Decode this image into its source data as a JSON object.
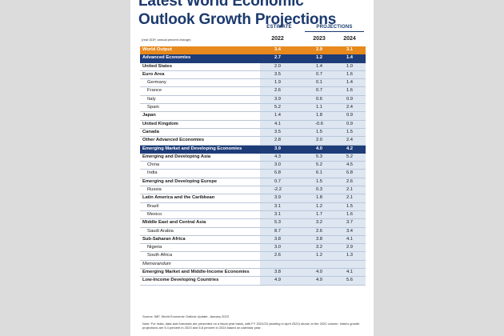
{
  "title": [
    "Latest World Economic",
    "Outlook Growth Projections"
  ],
  "header": {
    "estimate": "ESTIMATE",
    "projections": "PROJECTIONS",
    "years": [
      "2022",
      "2023",
      "2024"
    ],
    "note": "(real GDP, annual percent change)"
  },
  "rows": [
    {
      "label": "World Output",
      "v": [
        "3.4",
        "2.9",
        "3.1"
      ],
      "style": "orange"
    },
    {
      "label": "Advanced Economies",
      "v": [
        "2.7",
        "1.2",
        "1.4"
      ],
      "style": "navy"
    },
    {
      "label": "United States",
      "v": [
        "2.0",
        "1.4",
        "1.0"
      ],
      "style": "hd"
    },
    {
      "label": "Euro Area",
      "v": [
        "3.5",
        "0.7",
        "1.6"
      ],
      "style": "hd"
    },
    {
      "label": "Germany",
      "v": [
        "1.9",
        "0.1",
        "1.4"
      ],
      "style": "sub"
    },
    {
      "label": "France",
      "v": [
        "2.6",
        "0.7",
        "1.6"
      ],
      "style": "sub"
    },
    {
      "label": "Italy",
      "v": [
        "3.9",
        "0.6",
        "0.9"
      ],
      "style": "sub"
    },
    {
      "label": "Spain",
      "v": [
        "5.2",
        "1.1",
        "2.4"
      ],
      "style": "sub"
    },
    {
      "label": "Japan",
      "v": [
        "1.4",
        "1.8",
        "0.9"
      ],
      "style": "hd"
    },
    {
      "label": "United Kingdom",
      "v": [
        "4.1",
        "-0.6",
        "0.9"
      ],
      "style": "hd"
    },
    {
      "label": "Canada",
      "v": [
        "3.5",
        "1.5",
        "1.5"
      ],
      "style": "hd"
    },
    {
      "label": "Other Advanced Economies",
      "v": [
        "2.8",
        "2.0",
        "2.4"
      ],
      "style": "hd"
    },
    {
      "label": "Emerging Market and Developing Economies",
      "v": [
        "3.9",
        "4.0",
        "4.2"
      ],
      "style": "navy"
    },
    {
      "label": "Emerging and Developing Asia",
      "v": [
        "4.3",
        "5.3",
        "5.2"
      ],
      "style": "hd"
    },
    {
      "label": "China",
      "v": [
        "3.0",
        "5.2",
        "4.5"
      ],
      "style": "sub"
    },
    {
      "label": "India",
      "v": [
        "6.8",
        "6.1",
        "6.8"
      ],
      "style": "sub"
    },
    {
      "label": "Emerging and Developing Europe",
      "v": [
        "0.7",
        "1.5",
        "2.6"
      ],
      "style": "hd"
    },
    {
      "label": "Russia",
      "v": [
        "-2.2",
        "0.3",
        "2.1"
      ],
      "style": "sub"
    },
    {
      "label": "Latin America and the Caribbean",
      "v": [
        "3.9",
        "1.8",
        "2.1"
      ],
      "style": "hd"
    },
    {
      "label": "Brazil",
      "v": [
        "3.1",
        "1.2",
        "1.5"
      ],
      "style": "sub"
    },
    {
      "label": "Mexico",
      "v": [
        "3.1",
        "1.7",
        "1.6"
      ],
      "style": "sub"
    },
    {
      "label": "Middle East and Central Asia",
      "v": [
        "5.3",
        "3.2",
        "3.7"
      ],
      "style": "hd"
    },
    {
      "label": "Saudi Arabia",
      "v": [
        "8.7",
        "2.6",
        "3.4"
      ],
      "style": "sub"
    },
    {
      "label": "Sub-Saharan Africa",
      "v": [
        "3.8",
        "3.8",
        "4.1"
      ],
      "style": "hd"
    },
    {
      "label": "Nigeria",
      "v": [
        "3.0",
        "3.2",
        "2.9"
      ],
      "style": "sub"
    },
    {
      "label": "South Africa",
      "v": [
        "2.6",
        "1.2",
        "1.3"
      ],
      "style": "sub"
    },
    {
      "label": "Memorandum",
      "v": [
        "",
        "",
        ""
      ],
      "style": "memo"
    },
    {
      "label": "Emerging Market and Middle-Income Economies",
      "v": [
        "3.8",
        "4.0",
        "4.1"
      ],
      "style": "hd"
    },
    {
      "label": "Low-Income Developing Countries",
      "v": [
        "4.9",
        "4.9",
        "5.6"
      ],
      "style": "hd"
    }
  ],
  "source": "Source: IMF, World Economic Outlook Update, January 2023",
  "footnote": "Note: For India, data and forecasts are presented on a fiscal year basis, with FY 2022/23 (starting in April 2022) shown in the 2022 column. India's growth projections are 5.4 percent in 2023 and 6.8 percent in 2024 based on calendar year."
}
